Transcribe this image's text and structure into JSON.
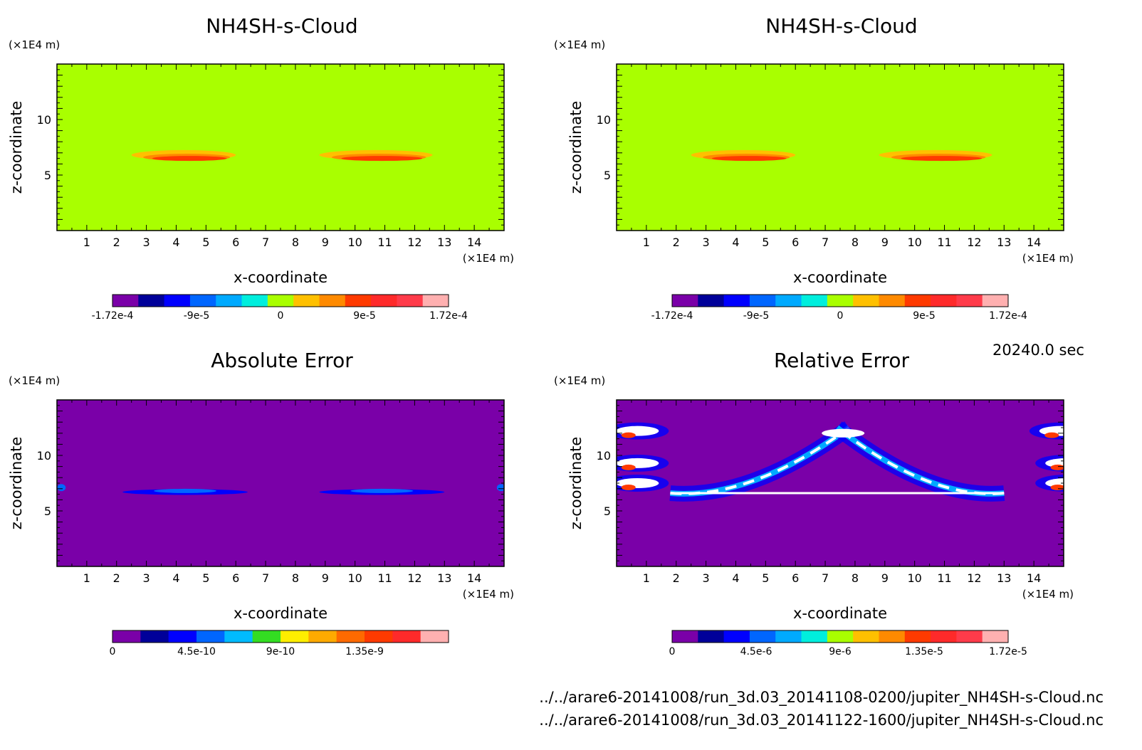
{
  "figure": {
    "time_label": "20240.0 sec",
    "file_paths": [
      "../../arare6-20141008/run_3d.03_20141108-0200/jupiter_NH4SH-s-Cloud.nc",
      "../../arare6-20141008/run_3d.03_20141122-1600/jupiter_NH4SH-s-Cloud.nc"
    ]
  },
  "colors": {
    "field_background": "#a9ff00",
    "error_background": "#7a00a8",
    "cloud": [
      "#ffc000",
      "#ff8a00",
      "#ff3a00",
      "#ff2a2a"
    ]
  },
  "chart_data": [
    {
      "type": "heatmap",
      "title": "NH4SH-s-Cloud",
      "xlabel": "x-coordinate",
      "ylabel": "z-coordinate",
      "x_unit": "(×1E4 m)",
      "y_unit": "(×1E4 m)",
      "xlim": [
        0,
        15
      ],
      "ylim": [
        0,
        15
      ],
      "x_ticks": [
        "1",
        "2",
        "3",
        "4",
        "5",
        "6",
        "7",
        "8",
        "9",
        "10",
        "11",
        "12",
        "13",
        "14"
      ],
      "y_ticks": [
        "5",
        "10"
      ],
      "colorbar": {
        "tick_labels": [
          "-1.72e-4",
          "-9e-5",
          "0",
          "9e-5",
          "1.72e-4"
        ],
        "colors": [
          "#7a00a8",
          "#000099",
          "#0000ff",
          "#0066ff",
          "#00aaff",
          "#00eedd",
          "#a9ff00",
          "#ffc000",
          "#ff8a00",
          "#ff3a00",
          "#ff2a2a",
          "#ff3b4a",
          "#ffb0b0"
        ]
      },
      "background": "field",
      "features": "cloud"
    },
    {
      "type": "heatmap",
      "title": "NH4SH-s-Cloud",
      "xlabel": "x-coordinate",
      "ylabel": "z-coordinate",
      "x_unit": "(×1E4 m)",
      "y_unit": "(×1E4 m)",
      "xlim": [
        0,
        15
      ],
      "ylim": [
        0,
        15
      ],
      "x_ticks": [
        "1",
        "2",
        "3",
        "4",
        "5",
        "6",
        "7",
        "8",
        "9",
        "10",
        "11",
        "12",
        "13",
        "14"
      ],
      "y_ticks": [
        "5",
        "10"
      ],
      "colorbar": {
        "tick_labels": [
          "-1.72e-4",
          "-9e-5",
          "0",
          "9e-5",
          "1.72e-4"
        ],
        "colors": [
          "#7a00a8",
          "#000099",
          "#0000ff",
          "#0066ff",
          "#00aaff",
          "#00eedd",
          "#a9ff00",
          "#ffc000",
          "#ff8a00",
          "#ff3a00",
          "#ff2a2a",
          "#ff3b4a",
          "#ffb0b0"
        ]
      },
      "background": "field",
      "features": "cloud"
    },
    {
      "type": "heatmap",
      "title": "Absolute Error",
      "xlabel": "x-coordinate",
      "ylabel": "z-coordinate",
      "x_unit": "(×1E4 m)",
      "y_unit": "(×1E4 m)",
      "xlim": [
        0,
        15
      ],
      "ylim": [
        0,
        15
      ],
      "x_ticks": [
        "1",
        "2",
        "3",
        "4",
        "5",
        "6",
        "7",
        "8",
        "9",
        "10",
        "11",
        "12",
        "13",
        "14"
      ],
      "y_ticks": [
        "5",
        "10"
      ],
      "colorbar": {
        "tick_labels": [
          "0",
          "4.5e-10",
          "9e-10",
          "1.35e-9"
        ],
        "colors": [
          "#7a00a8",
          "#000099",
          "#0000ff",
          "#0066ff",
          "#00bbff",
          "#33dd22",
          "#ffee00",
          "#ffaa00",
          "#ff6a00",
          "#ff3a00",
          "#ff2a2a",
          "#ffb0b0"
        ]
      },
      "background": "error",
      "features": "abs"
    },
    {
      "type": "heatmap",
      "title": "Relative Error",
      "xlabel": "x-coordinate",
      "ylabel": "z-coordinate",
      "x_unit": "(×1E4 m)",
      "y_unit": "(×1E4 m)",
      "xlim": [
        0,
        15
      ],
      "ylim": [
        0,
        15
      ],
      "x_ticks": [
        "1",
        "2",
        "3",
        "4",
        "5",
        "6",
        "7",
        "8",
        "9",
        "10",
        "11",
        "12",
        "13",
        "14"
      ],
      "y_ticks": [
        "5",
        "10"
      ],
      "colorbar": {
        "tick_labels": [
          "0",
          "4.5e-6",
          "9e-6",
          "1.35e-5",
          "1.72e-5"
        ],
        "colors": [
          "#7a00a8",
          "#000099",
          "#0000ff",
          "#0066ff",
          "#00aaff",
          "#00eedd",
          "#a9ff00",
          "#ffc000",
          "#ff8a00",
          "#ff3a00",
          "#ff2a2a",
          "#ff3b4a",
          "#ffb0b0"
        ]
      },
      "background": "error",
      "features": "rel"
    }
  ]
}
